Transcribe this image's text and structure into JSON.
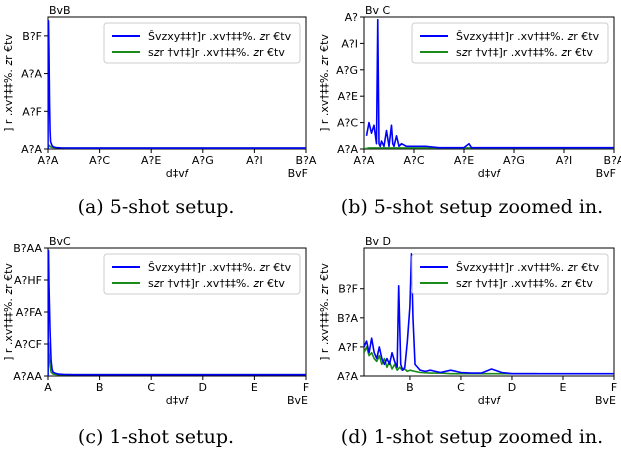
{
  "colors": {
    "green_series": "#1a8a1a",
    "blue_series": "#0000ff",
    "axis": "#000000"
  },
  "chart_data": [
    {
      "type": "line",
      "caption": "(a) 5-shot setup.",
      "corner_label": "BvB",
      "xlabel": "d‡v𝑓",
      "ylabel": "] r .xv†‡‡%. 𝑧r €tv",
      "xlim": [
        0,
        1
      ],
      "ylim": [
        0,
        0.7
      ],
      "xticks": [
        0,
        0.2,
        0.4,
        0.6,
        0.8,
        1.0
      ],
      "xtick_labels": [
        "A?A",
        "A?C",
        "A?E",
        "A?G",
        "A?I",
        "B?A"
      ],
      "yticks": [
        0,
        0.2,
        0.4,
        0.6
      ],
      "ytick_labels": [
        "A?A",
        "A?F",
        "A?A",
        "B?F"
      ],
      "x_offset_label": "BvF",
      "legend": [
        "Ŝvzxy‡‡†]r .xv†‡‡%. 𝑧r €tv",
        "s𝑧r †v†‡]r .xv†‡‡%. 𝑧r €tv"
      ],
      "legend_position": "top-right",
      "series": [
        {
          "x": [
            0.0,
            0.002,
            0.004,
            0.006,
            0.008,
            0.01,
            0.015,
            0.02,
            0.03,
            0.05,
            0.1,
            0.2,
            0.4,
            0.6,
            0.8,
            1.0
          ],
          "values": [
            0.0,
            0.68,
            0.5,
            0.25,
            0.1,
            0.04,
            0.02,
            0.012,
            0.008,
            0.006,
            0.005,
            0.005,
            0.005,
            0.005,
            0.005,
            0.005
          ]
        },
        {
          "x": [
            0.0,
            0.004,
            0.008,
            0.012,
            0.02,
            0.05,
            0.1,
            0.2,
            0.4,
            0.6,
            0.8,
            1.0
          ],
          "values": [
            0.0,
            0.02,
            0.015,
            0.01,
            0.008,
            0.006,
            0.005,
            0.005,
            0.005,
            0.005,
            0.005,
            0.005
          ]
        }
      ]
    },
    {
      "type": "line",
      "caption": "(b) 5-shot setup zoomed in.",
      "corner_label": "Bv C",
      "xlabel": "d‡v𝑓",
      "ylabel": "] r .xv†‡‡%. 𝑧r €tv",
      "xlim": [
        0,
        1
      ],
      "ylim": [
        0,
        0.5
      ],
      "xticks": [
        0,
        0.2,
        0.4,
        0.6,
        0.8,
        1.0
      ],
      "xtick_labels": [
        "A?A",
        "A?C",
        "A?E",
        "A?G",
        "A?I",
        "B?A"
      ],
      "yticks": [
        0,
        0.1,
        0.2,
        0.3,
        0.4,
        0.5
      ],
      "ytick_labels": [
        "A?A",
        "A?C",
        "A?E",
        "A?G",
        "A?I",
        "A?"
      ],
      "x_offset_label": "BvF",
      "legend": [
        "Ŝvzxy‡‡†]r .xv†‡‡%. 𝑧r €tv",
        "s𝑧r †v†‡]r .xv†‡‡%. 𝑧r €tv"
      ],
      "legend_position": "top-right",
      "series": [
        {
          "x": [
            0.01,
            0.02,
            0.03,
            0.04,
            0.05,
            0.055,
            0.06,
            0.065,
            0.07,
            0.08,
            0.09,
            0.1,
            0.11,
            0.115,
            0.12,
            0.13,
            0.14,
            0.15,
            0.17,
            0.2,
            0.25,
            0.3,
            0.35,
            0.4,
            0.42,
            0.43,
            0.45,
            0.5,
            0.6,
            0.8,
            1.0
          ],
          "values": [
            0.05,
            0.1,
            0.06,
            0.09,
            0.02,
            0.49,
            0.02,
            0.01,
            0.03,
            0.01,
            0.07,
            0.01,
            0.09,
            0.02,
            0.01,
            0.05,
            0.01,
            0.02,
            0.01,
            0.01,
            0.01,
            0.005,
            0.005,
            0.005,
            0.02,
            0.005,
            0.005,
            0.005,
            0.005,
            0.005,
            0.005
          ]
        },
        {
          "x": [
            0.0,
            0.02,
            0.05,
            0.1,
            0.2,
            0.4,
            0.6,
            0.8,
            1.0
          ],
          "values": [
            0.0,
            0.004,
            0.004,
            0.004,
            0.004,
            0.004,
            0.004,
            0.004,
            0.004
          ]
        }
      ]
    },
    {
      "type": "line",
      "caption": "(c) 1-shot setup.",
      "corner_label": "BvC",
      "xlabel": "d‡v𝑓",
      "ylabel": "] r .xv†‡‡%. 𝑧r €tv",
      "xlim": [
        0,
        5
      ],
      "ylim": [
        0,
        1
      ],
      "xticks": [
        0,
        1,
        2,
        3,
        4,
        5
      ],
      "xtick_labels": [
        "A",
        "B",
        "C",
        "D",
        "E",
        "F"
      ],
      "yticks": [
        0,
        0.25,
        0.5,
        0.75,
        1.0
      ],
      "ytick_labels": [
        "A?AA",
        "A?CF",
        "A?FA",
        "A?HF",
        "B?AA"
      ],
      "x_offset_label": "BvE",
      "legend": [
        "Ŝvzxy‡‡†]r .xv†‡‡%. 𝑧r €tv",
        "s𝑧r †v†‡]r .xv†‡‡%. 𝑧r €tv"
      ],
      "legend_position": "top-right",
      "series": [
        {
          "x": [
            0.0,
            0.01,
            0.02,
            0.04,
            0.06,
            0.08,
            0.1,
            0.15,
            0.2,
            0.3,
            0.5,
            1,
            2,
            3,
            4,
            5
          ],
          "values": [
            0.0,
            0.98,
            0.7,
            0.35,
            0.12,
            0.05,
            0.03,
            0.02,
            0.015,
            0.012,
            0.01,
            0.01,
            0.01,
            0.01,
            0.01,
            0.01
          ]
        },
        {
          "x": [
            0.0,
            0.01,
            0.02,
            0.04,
            0.06,
            0.1,
            0.2,
            0.5,
            1,
            2,
            3,
            4,
            5
          ],
          "values": [
            0.0,
            0.26,
            0.18,
            0.08,
            0.03,
            0.015,
            0.01,
            0.01,
            0.01,
            0.01,
            0.01,
            0.01,
            0.01
          ]
        }
      ]
    },
    {
      "type": "line",
      "caption": "(d) 1-shot setup zoomed in.",
      "corner_label": "Bv D",
      "xlabel": "d‡v𝑓",
      "ylabel": "] r .xv†‡‡%. 𝑧r €tv",
      "xlim": [
        0.1,
        5
      ],
      "ylim": [
        0,
        0.22
      ],
      "xticks": [
        1,
        2,
        3,
        4,
        5
      ],
      "xtick_labels": [
        "B",
        "C",
        "D",
        "E",
        "F"
      ],
      "yticks": [
        0,
        0.05,
        0.1,
        0.15
      ],
      "ytick_labels": [
        "A?A",
        "A?F",
        "B?A",
        "B?F"
      ],
      "x_offset_label": "BvE",
      "legend": [
        "Ŝvzxy‡‡†]r .xv†‡‡%. 𝑧r €tv",
        "s𝑧r †v†‡]r .xv†‡‡%. 𝑧r €tv"
      ],
      "legend_position": "top-right",
      "series": [
        {
          "x": [
            0.1,
            0.15,
            0.2,
            0.25,
            0.3,
            0.35,
            0.4,
            0.45,
            0.5,
            0.55,
            0.6,
            0.65,
            0.7,
            0.75,
            0.78,
            0.82,
            0.86,
            0.9,
            0.95,
            1.0,
            1.03,
            1.06,
            1.1,
            1.15,
            1.2,
            1.3,
            1.4,
            1.5,
            1.6,
            1.8,
            2.0,
            2.2,
            2.4,
            2.6,
            2.8,
            3.0,
            3.2,
            3.4,
            3.6,
            4.0,
            5.0
          ],
          "values": [
            0.05,
            0.06,
            0.04,
            0.065,
            0.04,
            0.03,
            0.05,
            0.03,
            0.02,
            0.03,
            0.02,
            0.04,
            0.025,
            0.015,
            0.155,
            0.02,
            0.01,
            0.015,
            0.06,
            0.12,
            0.21,
            0.1,
            0.02,
            0.015,
            0.01,
            0.008,
            0.01,
            0.008,
            0.006,
            0.01,
            0.006,
            0.005,
            0.005,
            0.012,
            0.006,
            0.004,
            0.004,
            0.004,
            0.004,
            0.004,
            0.004
          ]
        },
        {
          "x": [
            0.1,
            0.15,
            0.2,
            0.25,
            0.3,
            0.35,
            0.4,
            0.45,
            0.5,
            0.55,
            0.6,
            0.65,
            0.7,
            0.75,
            0.8,
            0.85,
            0.9,
            0.95,
            1.0,
            1.1,
            1.2,
            1.4,
            1.6,
            1.8,
            2.0,
            2.2,
            2.4,
            2.6,
            2.8,
            3.0,
            3.2,
            3.5
          ],
          "values": [
            0.04,
            0.05,
            0.035,
            0.04,
            0.03,
            0.025,
            0.035,
            0.02,
            0.03,
            0.015,
            0.025,
            0.012,
            0.02,
            0.01,
            0.015,
            0.01,
            0.012,
            0.008,
            0.01,
            0.008,
            0.006,
            0.005,
            0.005,
            0.004,
            0.004,
            0.004,
            0.004,
            0.004,
            0.004,
            0.004,
            0.004,
            0.004
          ]
        }
      ]
    }
  ]
}
